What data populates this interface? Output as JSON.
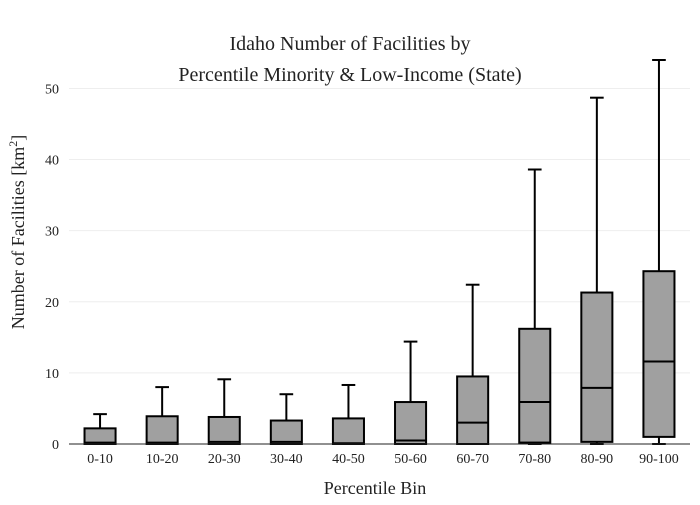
{
  "chart_data": {
    "type": "box",
    "title_line1": "Idaho Number of Facilities by",
    "title_line2": "Percentile Minority & Low-Income (State)",
    "xlabel": "Percentile Bin",
    "ylabel": "Number of Facilities  [km",
    "ylabel_sup": "2",
    "ylabel_close": "]",
    "ylim": [
      0,
      54
    ],
    "yticks": [
      0,
      10,
      20,
      30,
      40,
      50
    ],
    "ytick_labels": [
      "0",
      "10",
      "20",
      "30",
      "40",
      "50"
    ],
    "grid": true,
    "legend": "none",
    "categories": [
      "0-10",
      "10-20",
      "20-30",
      "30-40",
      "40-50",
      "50-60",
      "60-70",
      "70-80",
      "80-90",
      "90-100"
    ],
    "boxes": [
      {
        "min": 0,
        "q1": 0,
        "median": 0.2,
        "q3": 2.2,
        "max": 4.2
      },
      {
        "min": 0,
        "q1": 0,
        "median": 0.2,
        "q3": 3.9,
        "max": 8.0
      },
      {
        "min": 0,
        "q1": 0,
        "median": 0.3,
        "q3": 3.8,
        "max": 9.1
      },
      {
        "min": 0,
        "q1": 0,
        "median": 0.3,
        "q3": 3.3,
        "max": 7.0
      },
      {
        "min": 0,
        "q1": 0,
        "median": 0.1,
        "q3": 3.6,
        "max": 8.3
      },
      {
        "min": 0,
        "q1": 0,
        "median": 0.5,
        "q3": 5.9,
        "max": 14.4
      },
      {
        "min": 0,
        "q1": 0,
        "median": 3.0,
        "q3": 9.5,
        "max": 22.4
      },
      {
        "min": 0,
        "q1": 0.2,
        "median": 5.9,
        "q3": 16.2,
        "max": 38.6
      },
      {
        "min": 0,
        "q1": 0.3,
        "median": 7.9,
        "q3": 21.3,
        "max": 48.7
      },
      {
        "min": 0,
        "q1": 1.0,
        "median": 11.6,
        "q3": 24.3,
        "max": 54.0
      }
    ],
    "colors": {
      "box_fill": "#a0a0a0",
      "stroke": "#000000",
      "grid": "#eeeeee",
      "text": "#222222"
    }
  }
}
